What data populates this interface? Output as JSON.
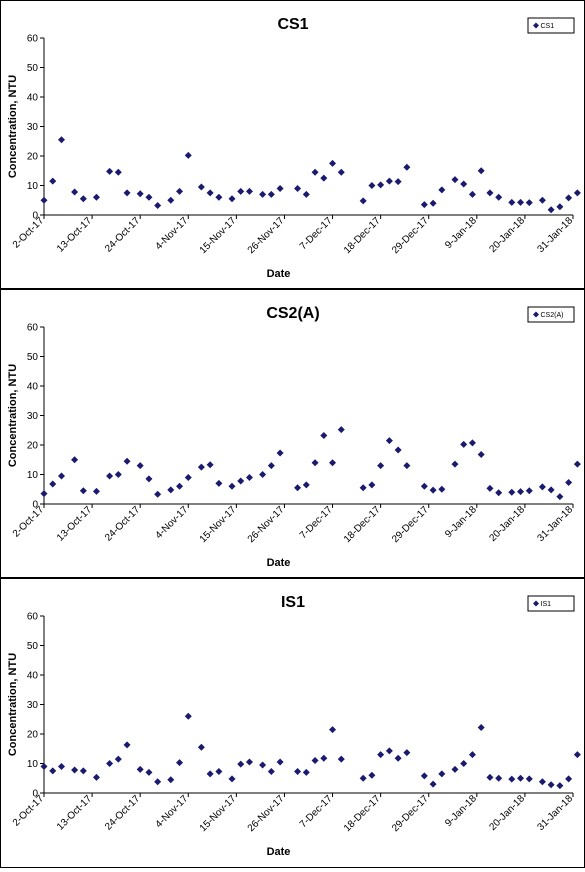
{
  "chart_data": [
    {
      "type": "scatter",
      "title": "CS1",
      "xlabel": "Date",
      "ylabel": "Concentration, NTU",
      "ylim": [
        0,
        60
      ],
      "yticks": [
        0,
        10,
        20,
        30,
        40,
        50,
        60
      ],
      "xticks": [
        "2-Oct-17",
        "13-Oct-17",
        "24-Oct-17",
        "4-Nov-17",
        "15-Nov-17",
        "26-Nov-17",
        "7-Dec-17",
        "18-Dec-17",
        "29-Dec-17",
        "9-Jan-18",
        "20-Jan-18",
        "31-Jan-18"
      ],
      "xlim": [
        "2017-10-02",
        "2018-01-31"
      ],
      "grid": false,
      "legend_position": "top-right",
      "marker_color": "#1a1a6e",
      "series": [
        {
          "name": "CS1",
          "x": [
            "2017-10-02",
            "2017-10-04",
            "2017-10-06",
            "2017-10-09",
            "2017-10-11",
            "2017-10-14",
            "2017-10-17",
            "2017-10-19",
            "2017-10-21",
            "2017-10-24",
            "2017-10-26",
            "2017-10-28",
            "2017-10-31",
            "2017-11-02",
            "2017-11-04",
            "2017-11-07",
            "2017-11-09",
            "2017-11-11",
            "2017-11-14",
            "2017-11-16",
            "2017-11-18",
            "2017-11-21",
            "2017-11-23",
            "2017-11-25",
            "2017-11-29",
            "2017-12-01",
            "2017-12-03",
            "2017-12-05",
            "2017-12-07",
            "2017-12-09",
            "2017-12-14",
            "2017-12-16",
            "2017-12-18",
            "2017-12-20",
            "2017-12-22",
            "2017-12-24",
            "2017-12-28",
            "2017-12-30",
            "2018-01-01",
            "2018-01-04",
            "2018-01-06",
            "2018-01-08",
            "2018-01-10",
            "2018-01-12",
            "2018-01-14",
            "2018-01-17",
            "2018-01-19",
            "2018-01-21",
            "2018-01-24",
            "2018-01-26",
            "2018-01-28",
            "2018-01-30",
            "2018-02-01"
          ],
          "y": [
            5,
            11.5,
            25.5,
            7.8,
            5.5,
            6,
            14.8,
            14.5,
            7.5,
            7.2,
            6,
            3.2,
            5,
            8,
            20.2,
            9.5,
            7.5,
            6,
            5.5,
            8,
            8,
            7,
            7,
            9,
            9,
            7,
            14.5,
            12.5,
            17.5,
            14.5,
            4.8,
            10,
            10.2,
            11.5,
            11.3,
            16.2,
            3.5,
            4,
            8.5,
            12,
            10.5,
            7,
            15,
            7.5,
            6,
            4.3,
            4.3,
            4.2,
            5,
            1.8,
            2.8,
            5.8,
            7.5
          ]
        }
      ]
    },
    {
      "type": "scatter",
      "title": "CS2(A)",
      "xlabel": "Date",
      "ylabel": "Concentration, NTU",
      "ylim": [
        0,
        60
      ],
      "yticks": [
        0,
        10,
        20,
        30,
        40,
        50,
        60
      ],
      "xticks": [
        "2-Oct-17",
        "13-Oct-17",
        "24-Oct-17",
        "4-Nov-17",
        "15-Nov-17",
        "26-Nov-17",
        "7-Dec-17",
        "18-Dec-17",
        "29-Dec-17",
        "9-Jan-18",
        "20-Jan-18",
        "31-Jan-18"
      ],
      "xlim": [
        "2017-10-02",
        "2018-01-31"
      ],
      "grid": false,
      "legend_position": "top-right",
      "marker_color": "#1a1a6e",
      "series": [
        {
          "name": "CS2(A)",
          "x": [
            "2017-10-02",
            "2017-10-04",
            "2017-10-06",
            "2017-10-09",
            "2017-10-11",
            "2017-10-14",
            "2017-10-17",
            "2017-10-19",
            "2017-10-21",
            "2017-10-24",
            "2017-10-26",
            "2017-10-28",
            "2017-10-31",
            "2017-11-02",
            "2017-11-04",
            "2017-11-07",
            "2017-11-09",
            "2017-11-11",
            "2017-11-14",
            "2017-11-16",
            "2017-11-18",
            "2017-11-21",
            "2017-11-23",
            "2017-11-25",
            "2017-11-29",
            "2017-12-01",
            "2017-12-03",
            "2017-12-05",
            "2017-12-07",
            "2017-12-09",
            "2017-12-14",
            "2017-12-16",
            "2017-12-18",
            "2017-12-20",
            "2017-12-22",
            "2017-12-24",
            "2017-12-28",
            "2017-12-30",
            "2018-01-01",
            "2018-01-04",
            "2018-01-06",
            "2018-01-08",
            "2018-01-10",
            "2018-01-12",
            "2018-01-14",
            "2018-01-17",
            "2018-01-19",
            "2018-01-21",
            "2018-01-24",
            "2018-01-26",
            "2018-01-28",
            "2018-01-30",
            "2018-02-01"
          ],
          "y": [
            3.5,
            6.8,
            9.5,
            15,
            4.5,
            4.3,
            9.5,
            10,
            14.5,
            13,
            8.5,
            3.3,
            4.8,
            6,
            9,
            12.5,
            13.3,
            7,
            6,
            7.8,
            9,
            10,
            13,
            17.3,
            5.5,
            6.5,
            14,
            23.2,
            14,
            25.2,
            5.5,
            6.5,
            13,
            21.5,
            18.3,
            13,
            6,
            4.7,
            5,
            13.5,
            20.2,
            20.7,
            16.8,
            5.3,
            3.8,
            4,
            4.2,
            4.5,
            5.8,
            4.8,
            2.5,
            7.3,
            13.5
          ]
        }
      ]
    },
    {
      "type": "scatter",
      "title": "IS1",
      "xlabel": "Date",
      "ylabel": "Concentration, NTU",
      "ylim": [
        0,
        60
      ],
      "yticks": [
        0,
        10,
        20,
        30,
        40,
        50,
        60
      ],
      "xticks": [
        "2-Oct-17",
        "13-Oct-17",
        "24-Oct-17",
        "4-Nov-17",
        "15-Nov-17",
        "26-Nov-17",
        "7-Dec-17",
        "18-Dec-17",
        "29-Dec-17",
        "9-Jan-18",
        "20-Jan-18",
        "31-Jan-18"
      ],
      "xlim": [
        "2017-10-02",
        "2018-01-31"
      ],
      "grid": false,
      "legend_position": "top-right",
      "marker_color": "#1a1a6e",
      "series": [
        {
          "name": "IS1",
          "x": [
            "2017-10-02",
            "2017-10-04",
            "2017-10-06",
            "2017-10-09",
            "2017-10-11",
            "2017-10-14",
            "2017-10-17",
            "2017-10-19",
            "2017-10-21",
            "2017-10-24",
            "2017-10-26",
            "2017-10-28",
            "2017-10-31",
            "2017-11-02",
            "2017-11-04",
            "2017-11-07",
            "2017-11-09",
            "2017-11-11",
            "2017-11-14",
            "2017-11-16",
            "2017-11-18",
            "2017-11-21",
            "2017-11-23",
            "2017-11-25",
            "2017-11-29",
            "2017-12-01",
            "2017-12-03",
            "2017-12-05",
            "2017-12-07",
            "2017-12-09",
            "2017-12-14",
            "2017-12-16",
            "2017-12-18",
            "2017-12-20",
            "2017-12-22",
            "2017-12-24",
            "2017-12-28",
            "2017-12-30",
            "2018-01-01",
            "2018-01-04",
            "2018-01-06",
            "2018-01-08",
            "2018-01-10",
            "2018-01-12",
            "2018-01-14",
            "2018-01-17",
            "2018-01-19",
            "2018-01-21",
            "2018-01-24",
            "2018-01-26",
            "2018-01-28",
            "2018-01-30",
            "2018-02-01"
          ],
          "y": [
            9,
            7.5,
            9,
            7.8,
            7.5,
            5.3,
            10,
            11.5,
            16.3,
            8,
            7,
            3.8,
            4.5,
            10.3,
            26,
            15.5,
            6.5,
            7.3,
            4.8,
            9.8,
            10.5,
            9.5,
            7.3,
            10.5,
            7.3,
            7,
            11,
            11.8,
            21.5,
            11.5,
            5,
            6,
            13,
            14.3,
            11.8,
            13.7,
            5.8,
            3,
            6.5,
            8,
            10,
            13,
            22.2,
            5.3,
            5,
            4.7,
            5,
            4.8,
            3.8,
            2.8,
            2.5,
            4.8,
            13
          ]
        }
      ]
    }
  ]
}
